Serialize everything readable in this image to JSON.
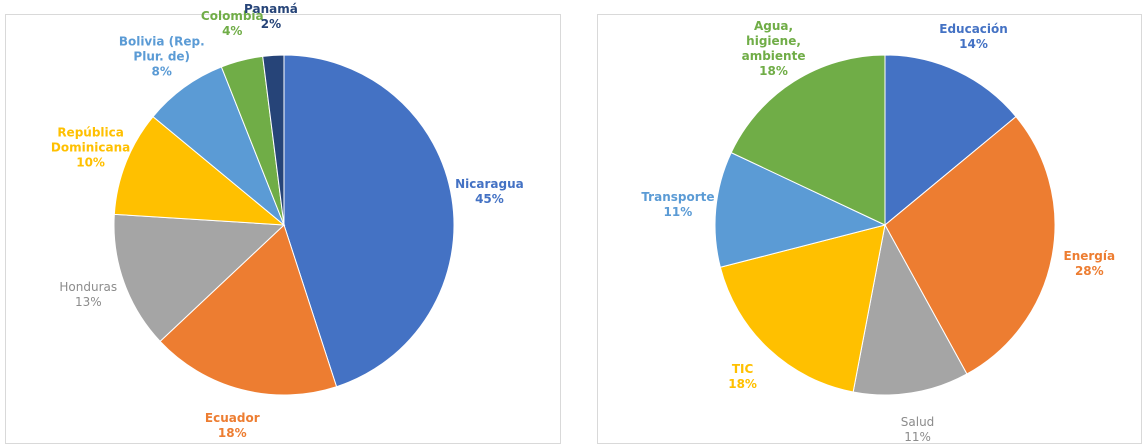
{
  "chart_data": [
    {
      "type": "pie",
      "categories": [
        "Nicaragua",
        "Ecuador",
        "Honduras",
        "República Dominicana",
        "Bolivia (Rep. Plur. de)",
        "Colombia",
        "Panamá"
      ],
      "values": [
        45,
        18,
        13,
        10,
        8,
        4,
        2
      ],
      "value_labels": [
        "45%",
        "18%",
        "13%",
        "10%",
        "8%",
        "4%",
        "2%"
      ],
      "colors": [
        "#4472c4",
        "#ed7d31",
        "#a5a5a5",
        "#ffc000",
        "#5b9bd5",
        "#70ad47",
        "#264478"
      ]
    },
    {
      "type": "pie",
      "categories": [
        "Educación",
        "Energía",
        "Salud",
        "TIC",
        "Transporte",
        "Agua, higiene, ambiente"
      ],
      "values": [
        14,
        28,
        11,
        18,
        11,
        18
      ],
      "value_labels": [
        "14%",
        "28%",
        "11%",
        "18%",
        "11%",
        "18%"
      ],
      "colors": [
        "#4472c4",
        "#ed7d31",
        "#a5a5a5",
        "#ffc000",
        "#5b9bd5",
        "#70ad47"
      ]
    }
  ]
}
